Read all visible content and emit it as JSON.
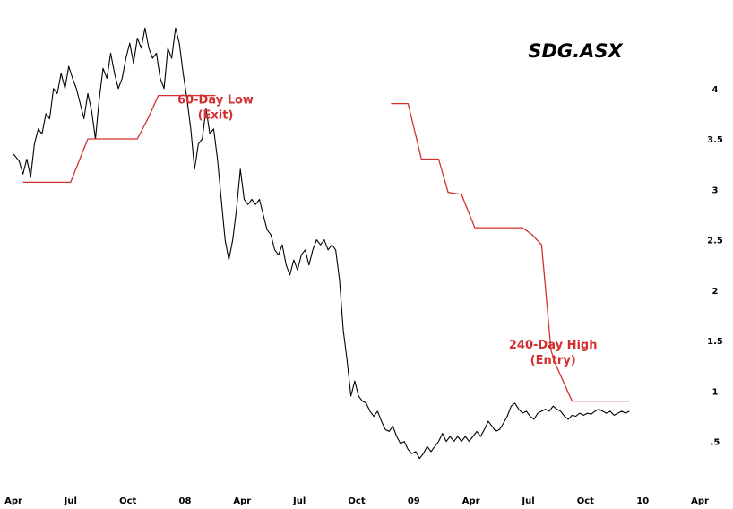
{
  "chart_data": {
    "type": "line",
    "title": "SDG.ASX",
    "x_tick_labels": [
      "Apr",
      "Jul",
      "Oct",
      "08",
      "Apr",
      "Jul",
      "Oct",
      "09",
      "Apr",
      "Jul",
      "Oct",
      "10",
      "Apr"
    ],
    "y_tick_labels": [
      ".5",
      "1",
      "1.5",
      "2",
      "2.5",
      "3",
      "3.5",
      "4"
    ],
    "y_ticks": [
      0.5,
      1,
      1.5,
      2,
      2.5,
      3,
      3.5,
      4
    ],
    "ylim": [
      0.15,
      4.7
    ],
    "x_unit": "months since Apr 2007",
    "xlim": [
      0,
      36
    ],
    "grid": false,
    "y_axis_side": "right",
    "colors": {
      "price": "#000000",
      "channel": "#d32f2f"
    },
    "annotations": [
      {
        "text_lines": [
          "60-Day Low",
          "(Exit)"
        ],
        "x": 10.6,
        "y": 3.85
      },
      {
        "text_lines": [
          "240-Day High",
          "(Entry)"
        ],
        "x": 28.3,
        "y": 1.42
      }
    ],
    "series": [
      {
        "kind": "price",
        "points": [
          [
            0.0,
            3.35
          ],
          [
            0.3,
            3.28
          ],
          [
            0.5,
            3.15
          ],
          [
            0.7,
            3.3
          ],
          [
            0.9,
            3.12
          ],
          [
            1.1,
            3.45
          ],
          [
            1.3,
            3.6
          ],
          [
            1.5,
            3.55
          ],
          [
            1.7,
            3.75
          ],
          [
            1.9,
            3.7
          ],
          [
            2.1,
            4.0
          ],
          [
            2.3,
            3.95
          ],
          [
            2.5,
            4.15
          ],
          [
            2.7,
            4.0
          ],
          [
            2.9,
            4.22
          ],
          [
            3.1,
            4.1
          ],
          [
            3.3,
            4.0
          ],
          [
            3.5,
            3.85
          ],
          [
            3.7,
            3.7
          ],
          [
            3.9,
            3.95
          ],
          [
            4.1,
            3.78
          ],
          [
            4.3,
            3.5
          ],
          [
            4.5,
            3.9
          ],
          [
            4.7,
            4.2
          ],
          [
            4.9,
            4.1
          ],
          [
            5.1,
            4.35
          ],
          [
            5.3,
            4.15
          ],
          [
            5.5,
            4.0
          ],
          [
            5.7,
            4.1
          ],
          [
            5.9,
            4.3
          ],
          [
            6.1,
            4.45
          ],
          [
            6.3,
            4.25
          ],
          [
            6.5,
            4.5
          ],
          [
            6.7,
            4.4
          ],
          [
            6.9,
            4.6
          ],
          [
            7.1,
            4.4
          ],
          [
            7.3,
            4.3
          ],
          [
            7.5,
            4.35
          ],
          [
            7.7,
            4.1
          ],
          [
            7.9,
            4.0
          ],
          [
            8.1,
            4.4
          ],
          [
            8.3,
            4.3
          ],
          [
            8.5,
            4.6
          ],
          [
            8.7,
            4.45
          ],
          [
            8.9,
            4.15
          ],
          [
            9.1,
            3.9
          ],
          [
            9.3,
            3.6
          ],
          [
            9.5,
            3.2
          ],
          [
            9.7,
            3.45
          ],
          [
            9.9,
            3.5
          ],
          [
            10.1,
            3.8
          ],
          [
            10.3,
            3.55
          ],
          [
            10.5,
            3.6
          ],
          [
            10.7,
            3.3
          ],
          [
            10.9,
            2.9
          ],
          [
            11.1,
            2.5
          ],
          [
            11.3,
            2.3
          ],
          [
            11.5,
            2.5
          ],
          [
            11.7,
            2.8
          ],
          [
            11.9,
            3.2
          ],
          [
            12.1,
            2.9
          ],
          [
            12.3,
            2.85
          ],
          [
            12.5,
            2.9
          ],
          [
            12.7,
            2.85
          ],
          [
            12.9,
            2.9
          ],
          [
            13.1,
            2.75
          ],
          [
            13.3,
            2.6
          ],
          [
            13.5,
            2.55
          ],
          [
            13.7,
            2.4
          ],
          [
            13.9,
            2.35
          ],
          [
            14.1,
            2.45
          ],
          [
            14.3,
            2.25
          ],
          [
            14.5,
            2.15
          ],
          [
            14.7,
            2.3
          ],
          [
            14.9,
            2.2
          ],
          [
            15.1,
            2.35
          ],
          [
            15.3,
            2.4
          ],
          [
            15.5,
            2.25
          ],
          [
            15.7,
            2.4
          ],
          [
            15.9,
            2.5
          ],
          [
            16.1,
            2.45
          ],
          [
            16.3,
            2.5
          ],
          [
            16.5,
            2.4
          ],
          [
            16.7,
            2.45
          ],
          [
            16.9,
            2.4
          ],
          [
            17.1,
            2.1
          ],
          [
            17.3,
            1.6
          ],
          [
            17.5,
            1.3
          ],
          [
            17.7,
            0.95
          ],
          [
            17.9,
            1.1
          ],
          [
            18.1,
            0.95
          ],
          [
            18.3,
            0.9
          ],
          [
            18.5,
            0.88
          ],
          [
            18.7,
            0.8
          ],
          [
            18.9,
            0.75
          ],
          [
            19.1,
            0.8
          ],
          [
            19.3,
            0.7
          ],
          [
            19.5,
            0.62
          ],
          [
            19.7,
            0.6
          ],
          [
            19.9,
            0.65
          ],
          [
            20.1,
            0.55
          ],
          [
            20.3,
            0.48
          ],
          [
            20.5,
            0.5
          ],
          [
            20.7,
            0.42
          ],
          [
            20.9,
            0.38
          ],
          [
            21.1,
            0.4
          ],
          [
            21.3,
            0.33
          ],
          [
            21.5,
            0.38
          ],
          [
            21.7,
            0.45
          ],
          [
            21.9,
            0.4
          ],
          [
            22.1,
            0.45
          ],
          [
            22.3,
            0.5
          ],
          [
            22.5,
            0.58
          ],
          [
            22.7,
            0.5
          ],
          [
            22.9,
            0.55
          ],
          [
            23.1,
            0.5
          ],
          [
            23.3,
            0.55
          ],
          [
            23.5,
            0.5
          ],
          [
            23.7,
            0.55
          ],
          [
            23.9,
            0.5
          ],
          [
            24.1,
            0.55
          ],
          [
            24.3,
            0.6
          ],
          [
            24.5,
            0.55
          ],
          [
            24.7,
            0.62
          ],
          [
            24.9,
            0.7
          ],
          [
            25.1,
            0.65
          ],
          [
            25.3,
            0.6
          ],
          [
            25.5,
            0.62
          ],
          [
            25.7,
            0.68
          ],
          [
            25.9,
            0.75
          ],
          [
            26.1,
            0.85
          ],
          [
            26.3,
            0.88
          ],
          [
            26.5,
            0.82
          ],
          [
            26.7,
            0.78
          ],
          [
            26.9,
            0.8
          ],
          [
            27.1,
            0.75
          ],
          [
            27.3,
            0.72
          ],
          [
            27.5,
            0.78
          ],
          [
            27.7,
            0.8
          ],
          [
            27.9,
            0.82
          ],
          [
            28.1,
            0.8
          ],
          [
            28.3,
            0.85
          ],
          [
            28.5,
            0.82
          ],
          [
            28.7,
            0.8
          ],
          [
            28.9,
            0.75
          ],
          [
            29.1,
            0.72
          ],
          [
            29.3,
            0.76
          ],
          [
            29.5,
            0.75
          ],
          [
            29.7,
            0.78
          ],
          [
            29.9,
            0.76
          ],
          [
            30.1,
            0.78
          ],
          [
            30.3,
            0.77
          ],
          [
            30.5,
            0.8
          ],
          [
            30.7,
            0.82
          ],
          [
            30.9,
            0.8
          ],
          [
            31.1,
            0.78
          ],
          [
            31.3,
            0.8
          ],
          [
            31.5,
            0.76
          ],
          [
            31.7,
            0.78
          ],
          [
            31.9,
            0.8
          ],
          [
            32.1,
            0.78
          ],
          [
            32.3,
            0.8
          ]
        ]
      },
      {
        "kind": "channel-low",
        "points": [
          [
            0.5,
            3.07
          ],
          [
            3.0,
            3.07
          ],
          [
            3.9,
            3.5
          ],
          [
            6.5,
            3.5
          ],
          [
            7.1,
            3.72
          ],
          [
            7.6,
            3.93
          ],
          [
            10.6,
            3.93
          ]
        ]
      },
      {
        "kind": "channel-high",
        "points": [
          [
            19.8,
            3.85
          ],
          [
            20.7,
            3.85
          ],
          [
            21.4,
            3.3
          ],
          [
            22.3,
            3.3
          ],
          [
            22.8,
            2.97
          ],
          [
            23.5,
            2.95
          ],
          [
            24.2,
            2.62
          ],
          [
            26.7,
            2.62
          ],
          [
            27.2,
            2.55
          ],
          [
            27.7,
            2.45
          ],
          [
            28.2,
            1.4
          ],
          [
            28.4,
            1.28
          ],
          [
            29.3,
            0.9
          ],
          [
            32.3,
            0.9
          ]
        ]
      }
    ]
  }
}
